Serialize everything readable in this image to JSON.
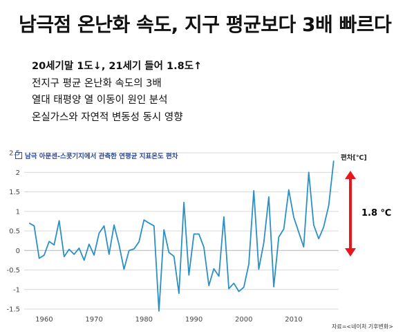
{
  "headline": "남극점 온난화 속도, 지구 평균보다 3배 빠르다",
  "bullets": [
    "20세기말 1도↓, 21세기 들어 1.8도↑",
    "전지구 평균 온난화 속도의 3배",
    "열대 태평양 열 이동이 원인 분석",
    "온실가스와 자연적 변동성 동시 영향"
  ],
  "colors": {
    "line": "#2a8fc4",
    "arrow": "#e8171e",
    "grid": "#d9d9d9",
    "legend": "#2b4aa0"
  },
  "chart_data": {
    "type": "line",
    "title": "",
    "legend": "남극 아문센-스콧기지에서 관측한 연평균 지표온도 편차",
    "unit_label": "편차[℃]",
    "source": "자료=<네이처 기후변화>",
    "annotation": "1.8 ℃",
    "xlabel": "",
    "ylabel": "",
    "xlim": [
      1956,
      2019
    ],
    "ylim": [
      -1.5,
      2.5
    ],
    "x_ticks": [
      1960,
      1970,
      1980,
      1990,
      2000,
      2010
    ],
    "y_ticks": [
      -1.5,
      -1,
      -0.5,
      0,
      0.5,
      1,
      1.5,
      2,
      2.5
    ],
    "y_tick_labels": [
      "-1.5",
      "-1",
      "-0.5",
      "0",
      "0.5",
      "1",
      "1.5",
      "2",
      "2.5"
    ],
    "x": [
      1957,
      1958,
      1959,
      1960,
      1961,
      1962,
      1963,
      1964,
      1965,
      1966,
      1967,
      1968,
      1969,
      1970,
      1971,
      1972,
      1973,
      1974,
      1975,
      1976,
      1977,
      1978,
      1979,
      1980,
      1981,
      1982,
      1983,
      1984,
      1985,
      1986,
      1987,
      1988,
      1989,
      1990,
      1991,
      1992,
      1993,
      1994,
      1995,
      1996,
      1997,
      1998,
      1999,
      2000,
      2001,
      2002,
      2003,
      2004,
      2005,
      2006,
      2007,
      2008,
      2009,
      2010,
      2011,
      2012,
      2013,
      2014,
      2015,
      2016,
      2017,
      2018
    ],
    "values": [
      0.7,
      0.63,
      -0.2,
      -0.12,
      0.23,
      0.14,
      0.76,
      -0.16,
      0.03,
      -0.1,
      0.06,
      -0.25,
      0.16,
      -0.12,
      0.44,
      0.63,
      -0.1,
      0.65,
      0.15,
      -0.48,
      0.0,
      0.04,
      0.22,
      0.78,
      0.7,
      0.63,
      -1.55,
      0.53,
      -0.05,
      -0.15,
      -1.1,
      1.23,
      -0.63,
      0.42,
      0.42,
      0.08,
      -0.9,
      -0.47,
      -0.66,
      0.86,
      -0.98,
      -0.84,
      -1.05,
      -0.94,
      -0.35,
      1.53,
      -0.48,
      0.2,
      1.37,
      -0.93,
      0.34,
      0.55,
      1.55,
      0.85,
      0.47,
      0.09,
      2.0,
      0.65,
      0.3,
      0.6,
      1.15,
      2.3
    ]
  }
}
